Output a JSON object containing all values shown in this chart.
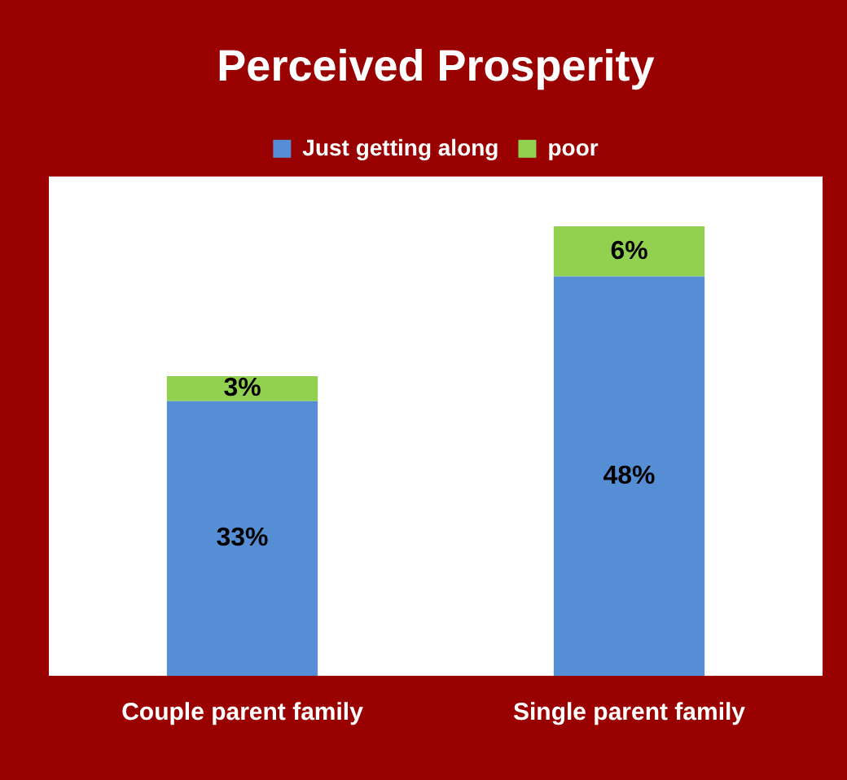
{
  "chart_data": {
    "type": "bar",
    "title": "Perceived Prosperity",
    "categories": [
      "Couple parent family",
      "Single parent family"
    ],
    "stacked": true,
    "ylim": [
      0,
      60
    ],
    "tick_labels": "x",
    "legend": "top",
    "series": [
      {
        "name": "Just getting along",
        "color": "#558ed5",
        "values": [
          33,
          48
        ],
        "value_labels": [
          "33%",
          "48%"
        ]
      },
      {
        "name": "poor",
        "color": "#92d050",
        "values": [
          3,
          6
        ],
        "value_labels": [
          "3%",
          "6%"
        ]
      }
    ]
  }
}
